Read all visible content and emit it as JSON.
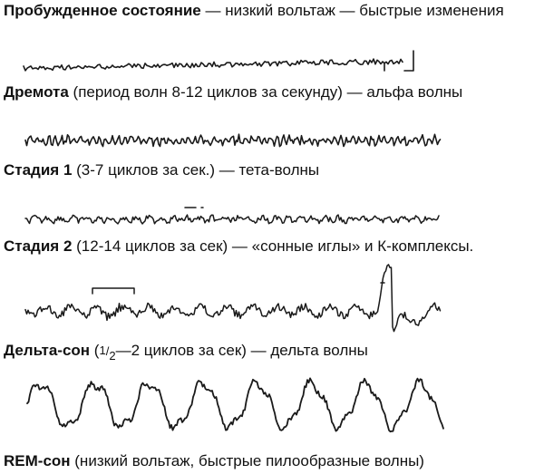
{
  "stages": [
    {
      "id": "awake",
      "name": "Пробужденное состояние",
      "desc": " — низкий вольтаж — быстрые изменения"
    },
    {
      "id": "drowsy",
      "name": "Дремота",
      "desc": " (период волн 8-12 циклов за секунду) — альфа волны"
    },
    {
      "id": "stage1",
      "name": "Стадия 1",
      "desc": " (3-7 циклов за сек.) — тета-волны"
    },
    {
      "id": "stage2",
      "name": "Стадия 2",
      "desc": " (12-14 циклов за сек) — «сонные иглы» и К-комплексы."
    },
    {
      "id": "delta",
      "name": "Дельта-сон",
      "desc_pre": " (",
      "frac_num": "1",
      "frac_den": "2",
      "desc_post": "—2 циклов за сек) — дельта волны"
    },
    {
      "id": "rem",
      "name": "REM-сон",
      "desc": " (низкий вольтаж, быстрые пилообразные волны)"
    }
  ]
}
